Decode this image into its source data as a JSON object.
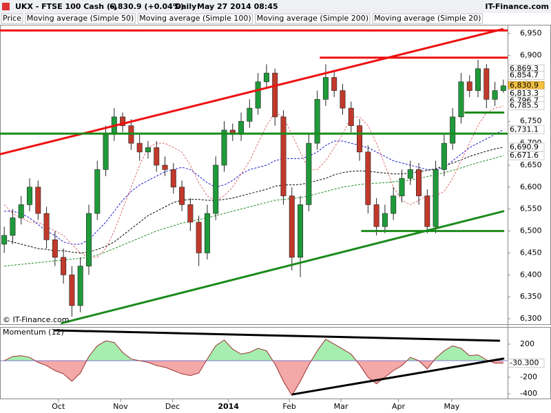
{
  "header": {
    "symbol": "UKX - FTSE 100 Cash (-)",
    "last": "6,830.9 (+0.04%)",
    "period": "Daily",
    "timestamp": "May 27 2014 08:45",
    "brand": "IT-Finance.com"
  },
  "chart_data": [
    {
      "type": "candlestick",
      "watermark": "© IT-Finance.com",
      "xlim": [
        -0.5,
        59.5
      ],
      "ylim": [
        6286,
        6970
      ],
      "yticks": [
        {
          "value": 6300,
          "label": "6,300"
        },
        {
          "value": 6350,
          "label": "6,350"
        },
        {
          "value": 6400,
          "label": "6,400"
        },
        {
          "value": 6450,
          "label": "6,450"
        },
        {
          "value": 6500,
          "label": "6,500"
        },
        {
          "value": 6550,
          "label": "6,550"
        },
        {
          "value": 6600,
          "label": "6,600"
        },
        {
          "value": 6650,
          "label": "6,650"
        },
        {
          "value": 6700,
          "label": "6,700"
        },
        {
          "value": 6750,
          "label": "6,750"
        },
        {
          "value": 6800,
          "label": "6,800"
        },
        {
          "value": 6850,
          "label": "6,850"
        },
        {
          "value": 6900,
          "label": "6,900"
        },
        {
          "value": 6950,
          "label": "6,950"
        }
      ],
      "grid": false,
      "candles": {
        "name": "Price",
        "up_color": "#1f9a3a",
        "down_color": "#c0392b",
        "open": [
          6470,
          6490,
          6530,
          6560,
          6600,
          6540,
          6480,
          6440,
          6400,
          6330,
          6420,
          6540,
          6640,
          6720,
          6760,
          6740,
          6700,
          6680,
          6690,
          6650,
          6640,
          6600,
          6560,
          6520,
          6450,
          6540,
          6650,
          6730,
          6720,
          6750,
          6780,
          6840,
          6860,
          6760,
          6580,
          6440,
          6560,
          6700,
          6800,
          6850,
          6820,
          6780,
          6740,
          6680,
          6560,
          6510,
          6540,
          6580,
          6620,
          6640,
          6580,
          6510,
          6640,
          6700,
          6760,
          6840,
          6820,
          6870,
          6800,
          6820
        ],
        "high": [
          6510,
          6550,
          6580,
          6620,
          6615,
          6555,
          6500,
          6460,
          6420,
          6440,
          6560,
          6660,
          6740,
          6780,
          6770,
          6755,
          6720,
          6705,
          6705,
          6670,
          6655,
          6615,
          6575,
          6535,
          6560,
          6670,
          6750,
          6745,
          6770,
          6800,
          6860,
          6880,
          6870,
          6775,
          6600,
          6580,
          6720,
          6820,
          6880,
          6865,
          6835,
          6795,
          6755,
          6695,
          6575,
          6560,
          6600,
          6640,
          6660,
          6655,
          6595,
          6660,
          6720,
          6780,
          6860,
          6855,
          6890,
          6880,
          6840,
          6845
        ],
        "low": [
          6450,
          6470,
          6515,
          6545,
          6525,
          6460,
          6420,
          6380,
          6305,
          6315,
          6400,
          6525,
          6625,
          6705,
          6725,
          6685,
          6660,
          6665,
          6635,
          6625,
          6585,
          6545,
          6500,
          6420,
          6435,
          6525,
          6635,
          6705,
          6705,
          6735,
          6765,
          6825,
          6740,
          6560,
          6410,
          6395,
          6545,
          6685,
          6785,
          6805,
          6765,
          6725,
          6660,
          6540,
          6490,
          6495,
          6525,
          6565,
          6605,
          6560,
          6495,
          6495,
          6625,
          6685,
          6745,
          6805,
          6805,
          6780,
          6785,
          6815
        ],
        "close": [
          6490,
          6530,
          6560,
          6600,
          6540,
          6480,
          6440,
          6400,
          6330,
          6420,
          6540,
          6640,
          6720,
          6760,
          6740,
          6700,
          6680,
          6690,
          6650,
          6640,
          6600,
          6560,
          6520,
          6450,
          6540,
          6650,
          6730,
          6720,
          6750,
          6780,
          6840,
          6860,
          6760,
          6580,
          6440,
          6560,
          6700,
          6800,
          6850,
          6820,
          6780,
          6740,
          6680,
          6560,
          6510,
          6540,
          6580,
          6620,
          6640,
          6580,
          6510,
          6640,
          6700,
          6760,
          6840,
          6820,
          6870,
          6800,
          6820,
          6830.9
        ]
      },
      "series": [
        {
          "name": "Moving average (Simple 50)",
          "color": "#1a1acc",
          "dash": "3,2",
          "values": [
            6545,
            6545,
            6540,
            6530,
            6515,
            6500,
            6490,
            6475,
            6470,
            6470,
            6480,
            6500,
            6520,
            6545,
            6570,
            6590,
            6605,
            6615,
            6625,
            6635,
            6640,
            6645,
            6640,
            6625,
            6610,
            6600,
            6605,
            6615,
            6630,
            6640,
            6645,
            6650,
            6660,
            6665,
            6665,
            6665,
            6670,
            6680,
            6695,
            6705,
            6705,
            6700,
            6695,
            6690,
            6680,
            6670,
            6660,
            6655,
            6650,
            6645,
            6640,
            6640,
            6645,
            6660,
            6675,
            6690,
            6700,
            6710,
            6720,
            6731.1
          ]
        },
        {
          "name": "Moving average (Simple 100)",
          "color": "#000000",
          "dash": "3,2",
          "values": [
            6480,
            6475,
            6470,
            6465,
            6460,
            6458,
            6455,
            6455,
            6452,
            6450,
            6452,
            6458,
            6465,
            6475,
            6490,
            6505,
            6520,
            6535,
            6545,
            6555,
            6565,
            6570,
            6572,
            6572,
            6570,
            6570,
            6572,
            6575,
            6580,
            6585,
            6590,
            6595,
            6602,
            6605,
            6605,
            6606,
            6610,
            6615,
            6620,
            6628,
            6633,
            6636,
            6637,
            6636,
            6634,
            6632,
            6630,
            6630,
            6632,
            6635,
            6638,
            6642,
            6648,
            6655,
            6662,
            6670,
            6676,
            6682,
            6687,
            6690.9
          ]
        },
        {
          "name": "Moving average (Simple 200)",
          "color": "#1a8a1a",
          "dash": "3,2",
          "values": [
            6420,
            6422,
            6424,
            6426,
            6428,
            6430,
            6432,
            6434,
            6436,
            6438,
            6440,
            6445,
            6452,
            6460,
            6468,
            6476,
            6484,
            6492,
            6500,
            6506,
            6512,
            6518,
            6522,
            6526,
            6530,
            6535,
            6540,
            6545,
            6550,
            6555,
            6560,
            6565,
            6570,
            6572,
            6574,
            6576,
            6580,
            6585,
            6590,
            6595,
            6600,
            6603,
            6606,
            6608,
            6609,
            6610,
            6612,
            6614,
            6616,
            6620,
            6624,
            6628,
            6633,
            6638,
            6644,
            6650,
            6656,
            6661,
            6666,
            6671.6
          ]
        },
        {
          "name": "Moving average (Simple 20)",
          "color": "#e07070",
          "dash": "3,2",
          "values": [
            6560,
            6540,
            6530,
            6520,
            6520,
            6510,
            6500,
            6490,
            6470,
            6450,
            6440,
            6440,
            6460,
            6500,
            6550,
            6600,
            6650,
            6690,
            6700,
            6700,
            6690,
            6680,
            6650,
            6610,
            6580,
            6570,
            6580,
            6600,
            6630,
            6660,
            6700,
            6740,
            6770,
            6760,
            6720,
            6680,
            6640,
            6640,
            6660,
            6690,
            6720,
            6760,
            6760,
            6740,
            6700,
            6650,
            6600,
            6570,
            6560,
            6570,
            6580,
            6580,
            6590,
            6620,
            6660,
            6700,
            6740,
            6770,
            6780,
            6785
          ]
        }
      ],
      "trendlines": [
        {
          "color": "#ee1111",
          "x": [
            -0.5,
            58.9
          ],
          "values": [
            6675,
            6960
          ]
        },
        {
          "color": "#ee1111",
          "x": [
            -0.5,
            59.5
          ],
          "values": [
            6957,
            6957
          ]
        },
        {
          "color": "#ee1111",
          "x": [
            37.4,
            59.5
          ],
          "values": [
            6895,
            6895
          ]
        },
        {
          "color": "#1a8a1a",
          "x": [
            -0.5,
            59.5
          ],
          "values": [
            6722,
            6722
          ]
        },
        {
          "color": "#1a8a1a",
          "x": [
            6.8,
            59.0
          ],
          "values": [
            6290,
            6545
          ]
        },
        {
          "color": "#1a8a1a",
          "x": [
            42.3,
            59.0
          ],
          "values": [
            6500,
            6500
          ]
        },
        {
          "color": "#1a8a1a",
          "x": [
            54.5,
            59.0
          ],
          "values": [
            6770,
            6770
          ]
        }
      ],
      "level_labels": [
        {
          "value": 6869.3,
          "label": "6,869.3",
          "color": "#b01010",
          "background": "#ffffff"
        },
        {
          "value": 6854.7,
          "label": "6,854.7",
          "color": "#e02020",
          "background": "#ffffff"
        },
        {
          "value": 6830.9,
          "label": "6,830.9",
          "color": "#000000",
          "background": "#f5c242"
        },
        {
          "value": 6813.3,
          "label": "6,813.3",
          "color": "#1a8a1a",
          "background": "#ffffff"
        },
        {
          "value": 6796.7,
          "label": "6,796.7",
          "color": "#1a8a1a",
          "background": "#ffffff"
        },
        {
          "value": 6785.5,
          "label": "6,785.5",
          "color": "#1a8a1a",
          "background": "#ffffff"
        },
        {
          "value": 6731.1,
          "label": "6,731.1",
          "color": "#1a1acc",
          "background": "#ffffff"
        },
        {
          "value": 6690.9,
          "label": "6,690.9",
          "color": "#000000",
          "background": "#ffffff"
        },
        {
          "value": 6671.6,
          "label": "6,671.6",
          "color": "#1a8a1a",
          "background": "#ffffff"
        }
      ]
    },
    {
      "type": "area",
      "title": "Momentum (12)",
      "xlim": [
        -0.5,
        59.5
      ],
      "ylim": [
        -467,
        400
      ],
      "yticks": [
        200,
        -200,
        -400
      ],
      "xticks": [
        {
          "value": 6.4,
          "label": "Oct"
        },
        {
          "value": 13.75,
          "label": "Nov"
        },
        {
          "value": 19.9,
          "label": "Dec"
        },
        {
          "value": 26.5,
          "label": "2014"
        },
        {
          "value": 33.7,
          "label": "Feb"
        },
        {
          "value": 39.8,
          "label": "Mar"
        },
        {
          "value": 46.6,
          "label": "Apr"
        },
        {
          "value": 52.9,
          "label": "May"
        }
      ],
      "series": [
        {
          "name": "Momentum (12)",
          "color": "#9a3030",
          "positive_color": "#a6eeb0",
          "negative_color": "#f4a8a8",
          "values": [
            0,
            50,
            60,
            40,
            -20,
            -60,
            -120,
            -160,
            -250,
            -150,
            50,
            180,
            240,
            220,
            100,
            20,
            0,
            -20,
            -60,
            -80,
            -120,
            -160,
            -180,
            -150,
            20,
            180,
            250,
            140,
            80,
            100,
            150,
            120,
            -40,
            -250,
            -420,
            -250,
            -50,
            120,
            260,
            200,
            140,
            80,
            -50,
            -200,
            -280,
            -200,
            -120,
            -60,
            40,
            0,
            -100,
            30,
            120,
            180,
            150,
            60,
            70,
            10,
            -30,
            -30.3
          ]
        }
      ],
      "trendlines": [
        {
          "color": "#000000",
          "x": [
            6.0,
            58.5
          ],
          "values": [
            367,
            242
          ]
        },
        {
          "color": "#000000",
          "x": [
            34.1,
            59.0
          ],
          "values": [
            -408,
            25
          ]
        }
      ],
      "level_labels": [
        {
          "value": -30.3,
          "label": "-30.300",
          "color": "#000000",
          "background": "#ffffff"
        }
      ]
    }
  ]
}
